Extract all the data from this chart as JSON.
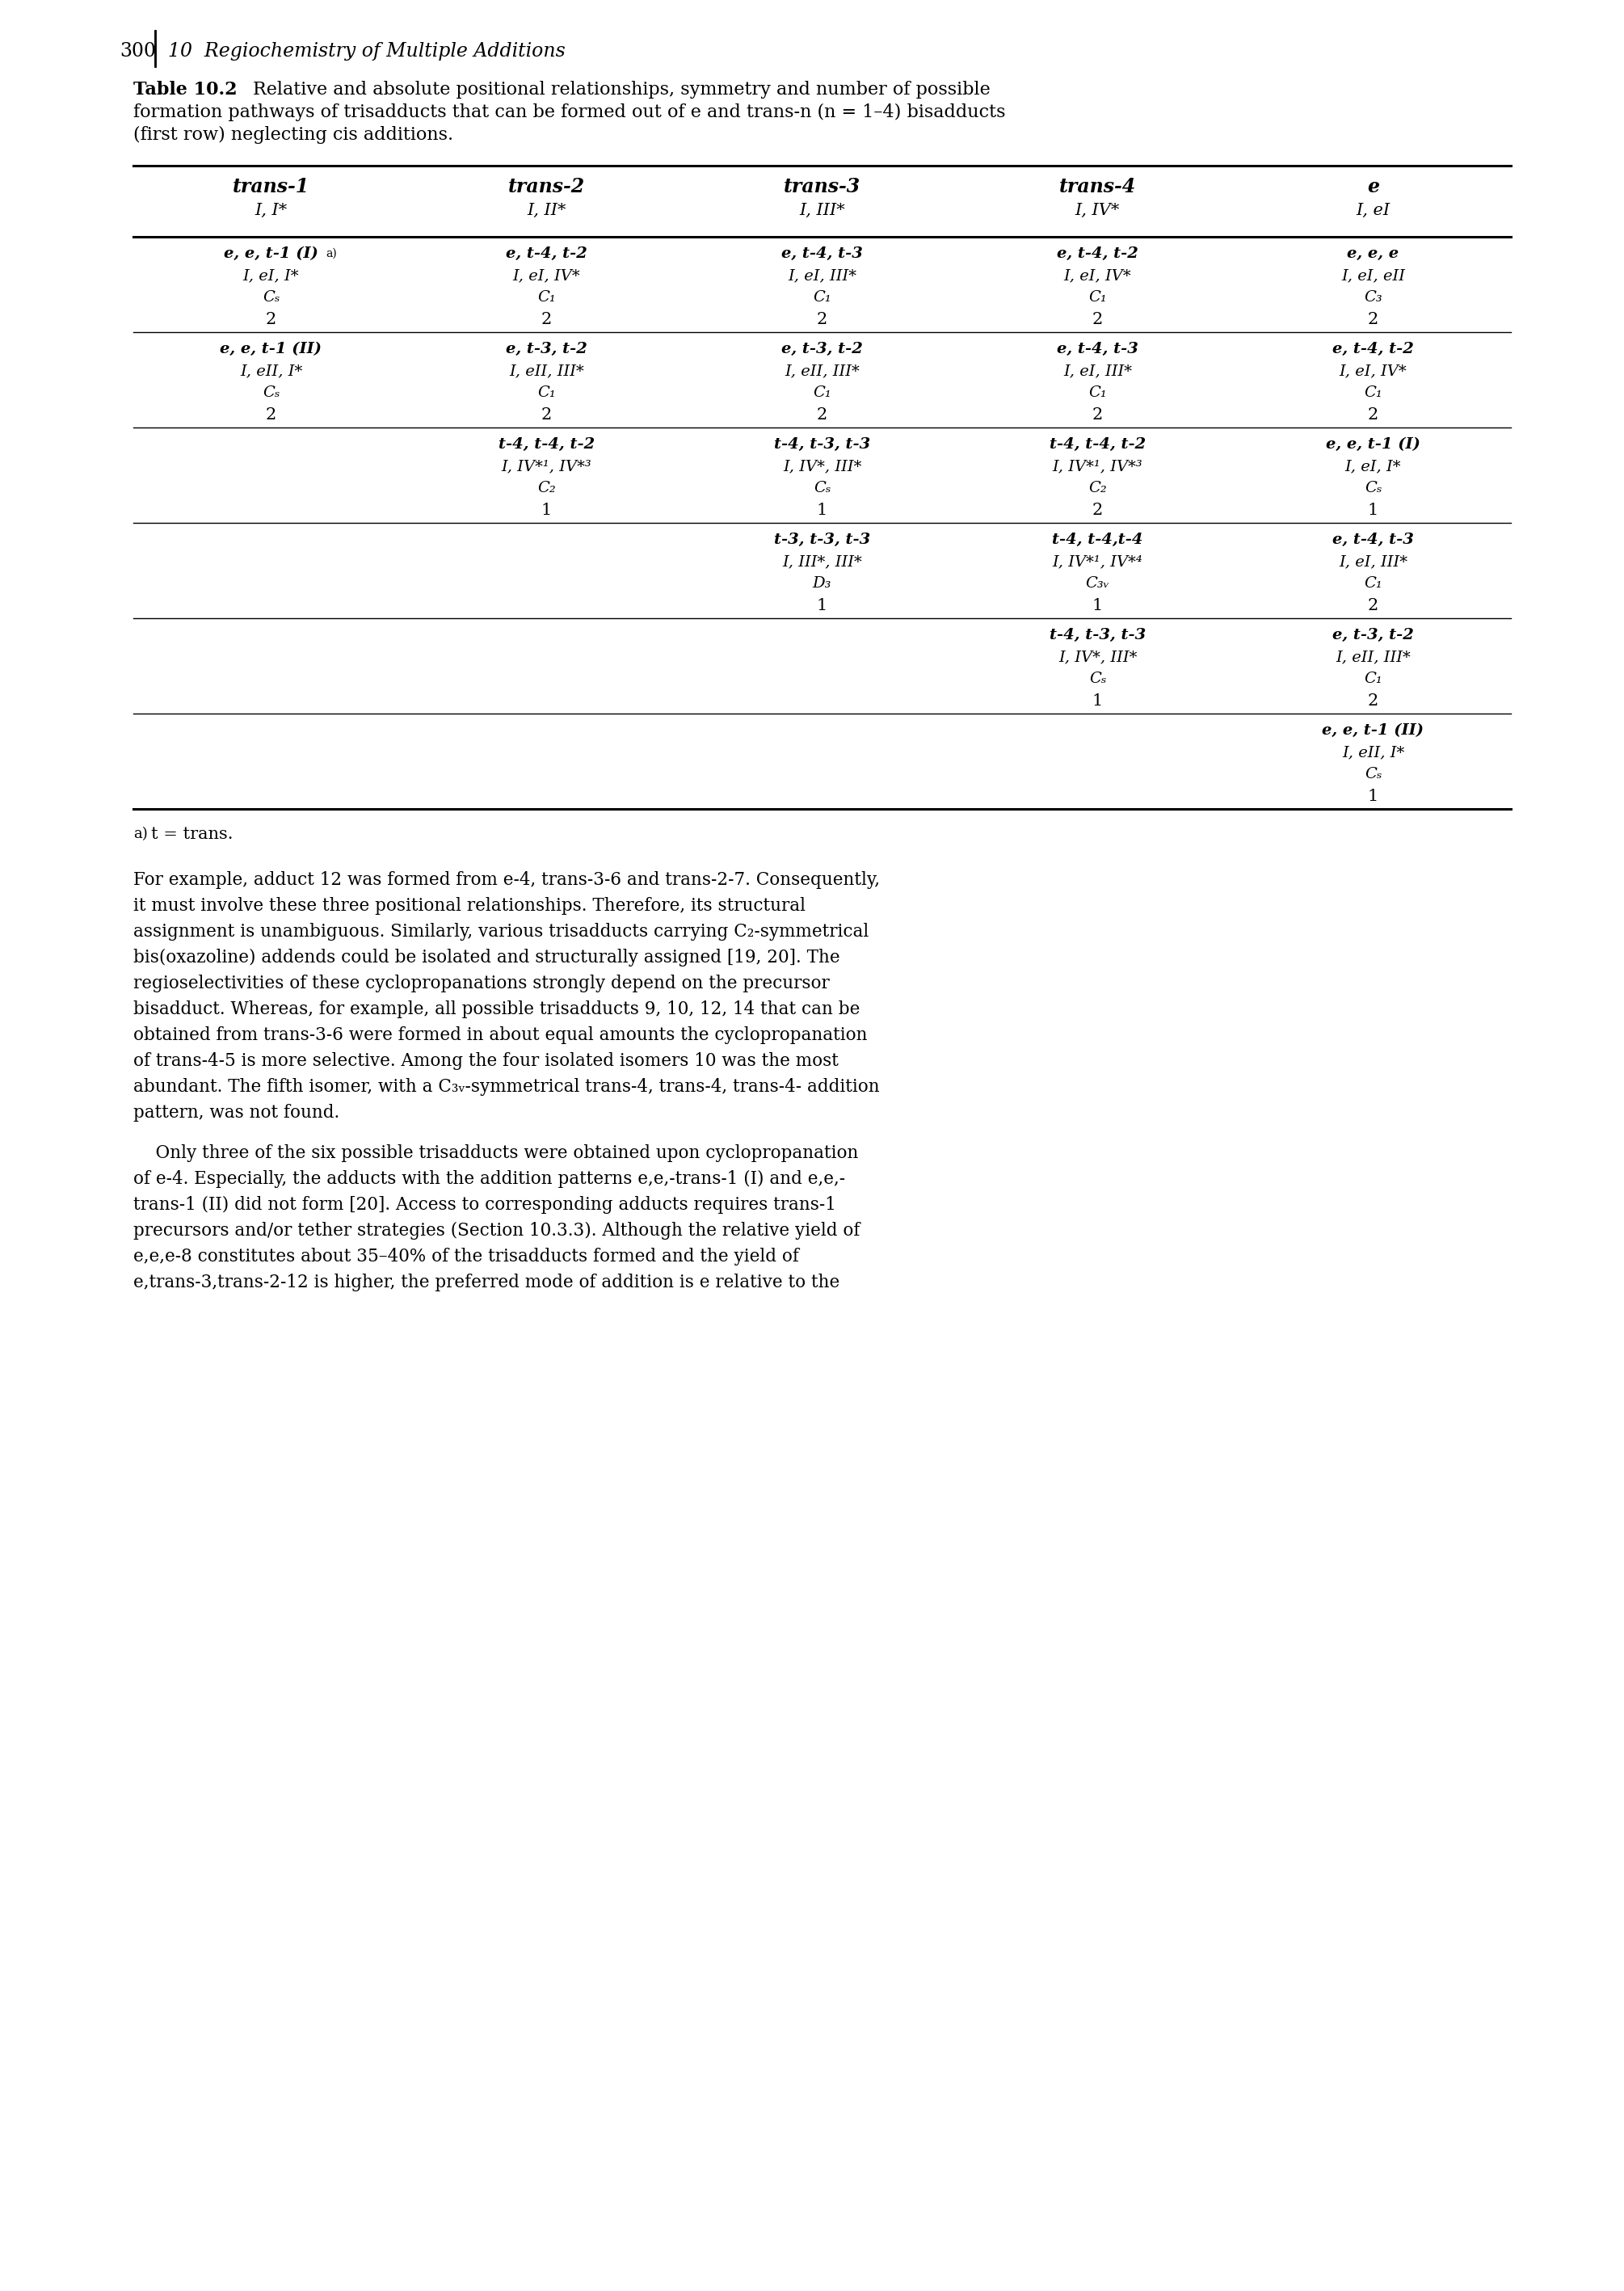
{
  "page_num": "300",
  "chapter": "10  Regiochemistry of Multiple Additions",
  "table_label": "Table 10.2",
  "caption": "Relative and absolute positional relationships, symmetry and number of possible\nformation pathways of trisadducts that can be formed out of e and trans-n (n = 1–4) bisadducts\n(first row) neglecting cis additions.",
  "col_headers": [
    [
      "trans-1",
      "I, I*"
    ],
    [
      "trans-2",
      "I, II*"
    ],
    [
      "trans-3",
      "I, III*"
    ],
    [
      "trans-4",
      "I, IV*"
    ],
    [
      "e",
      "I, eI"
    ]
  ],
  "rows": [
    {
      "cells": [
        [
          "e, e, t-1 (I)",
          "I, eI, I*",
          "Cₛ",
          "2"
        ],
        [
          "e, t-4, t-2",
          "I, eI, IV*",
          "C₁",
          "2"
        ],
        [
          "e, t-4, t-3",
          "I, eI, III*",
          "C₁",
          "2"
        ],
        [
          "e, t-4, t-2",
          "I, eI, IV*",
          "C₁",
          "2"
        ],
        [
          "e, e, e",
          "I, eI, eII",
          "C₃",
          "2"
        ]
      ]
    },
    {
      "cells": [
        [
          "e, e, t-1 (II)",
          "I, eII, I*",
          "Cₛ",
          "2"
        ],
        [
          "e, t-3, t-2",
          "I, eII, III*",
          "C₁",
          "2"
        ],
        [
          "e, t-3, t-2",
          "I, eII, III*",
          "C₁",
          "2"
        ],
        [
          "e, t-4, t-3",
          "I, eI, III*",
          "C₁",
          "2"
        ],
        [
          "e, t-4, t-2",
          "I, eI, IV*",
          "C₁",
          "2"
        ]
      ]
    },
    {
      "cells": [
        null,
        [
          "t-4, t-4, t-2",
          "I, IV*¹, IV*³",
          "C₂",
          "1"
        ],
        [
          "t-4, t-3, t-3",
          "I, IV*, III*",
          "Cₛ",
          "1"
        ],
        [
          "t-4, t-4, t-2",
          "I, IV*¹, IV*³",
          "C₂",
          "2"
        ],
        [
          "e, e, t-1 (I)",
          "I, eI, I*",
          "Cₛ",
          "1"
        ]
      ]
    },
    {
      "cells": [
        null,
        null,
        [
          "t-3, t-3, t-3",
          "I, III*, III*",
          "D₃",
          "1"
        ],
        [
          "t-4, t-4,t-4",
          "I, IV*¹, IV*⁴",
          "C₃ᵥ",
          "1"
        ],
        [
          "e, t-4, t-3",
          "I, eI, III*",
          "C₁",
          "2"
        ]
      ]
    },
    {
      "cells": [
        null,
        null,
        null,
        [
          "t-4, t-3, t-3",
          "I, IV*, III*",
          "Cₛ",
          "1"
        ],
        [
          "e, t-3, t-2",
          "I, eII, III*",
          "C₁",
          "2"
        ]
      ]
    },
    {
      "cells": [
        null,
        null,
        null,
        null,
        [
          "e, e, t-1 (II)",
          "I, eII, I*",
          "Cₛ",
          "1"
        ]
      ]
    }
  ],
  "footnote": "a)  t = trans.",
  "body_paragraphs": [
    "For example, adduct **12** was formed from *e*-4, *trans*-3-**6** and *trans*-2-**7**. Consequently, it must involve these three positional relationships. Therefore, its structural assignment is unambiguous. Similarly, various trisadducts carrying *C*₂-symmetrical bis(oxazoline) addends could be isolated and structurally assigned [19, 20]. The regioselectivities of these cyclopropanations strongly depend on the precursor bisadduct. Whereas, for example, all possible trisadducts **9**, **10**, **12**, **14** that can be obtained from *trans*-3-**6** were formed in about equal amounts the cyclopropanation of *trans*-4-**5** is more selective. Among the four isolated isomers **10** was the most abundant. The fifth isomer, with a *C*₃ᵥ-symmetrical *trans*-4, *trans*-4, *trans*-4- addition pattern, was not found.",
    "Only three of the six possible trisadducts were obtained upon cyclopropanation of *e*-**4**. Especially, the adducts with the addition patterns *e*,*e*,-trans-1 (I) and *e*,*e*,-*trans*-1 (II) did not form [20]. Access to corresponding adducts requires *trans*-1 precursors and/or tether strategies (Section 10.3.3). Although the relative yield of *e*,*e*,*e*-**8** constitutes about 35–40% of the trisadducts formed and the yield of *e*,*trans*-3,*trans*-2-**12** is higher, the preferred mode of addition is *e* relative to the"
  ]
}
